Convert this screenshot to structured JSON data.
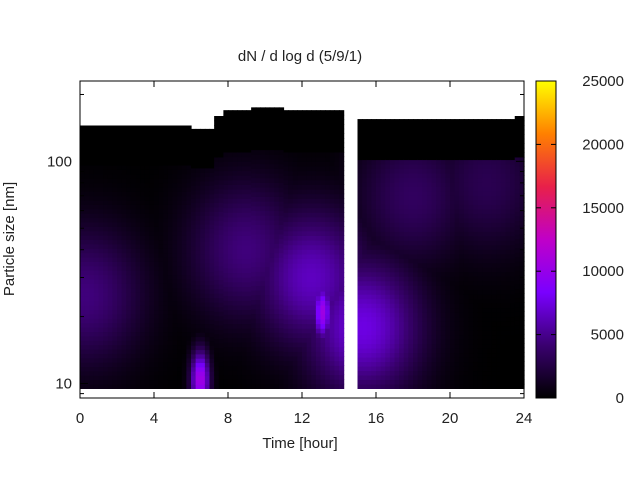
{
  "chart_data": {
    "type": "heatmap",
    "title": "dN / d log d (5/9/1)",
    "xlabel": "Time [hour]",
    "ylabel": "Particle size [nm]",
    "xlim": [
      0,
      24
    ],
    "x_ticks": [
      0,
      4,
      8,
      12,
      16,
      20,
      24
    ],
    "y_scale": "log",
    "ylim": [
      8.6,
      230
    ],
    "y_ticks": [
      10,
      100
    ],
    "colorbar": {
      "range": [
        0,
        25000
      ],
      "ticks": [
        0,
        5000,
        10000,
        15000,
        20000,
        25000
      ],
      "colormap": [
        "#000000",
        "#3a0070",
        "#7a00ff",
        "#c000c8",
        "#e8204a",
        "#ff8000",
        "#ffff00"
      ]
    },
    "data_gap_hours": [
      14.3,
      14.9
    ],
    "size_range_nm": [
      9.5,
      140
    ],
    "upper_size_limit_nm": {
      "time_hour": [
        0,
        1.5,
        2.2,
        3,
        4,
        5,
        6,
        6.5,
        7.2,
        7.8,
        9.3,
        10,
        11,
        13,
        14.3,
        15,
        16,
        17,
        18,
        19,
        20,
        21,
        22,
        23,
        23.5,
        24
      ],
      "size_nm": [
        145,
        145,
        145,
        145,
        145,
        145,
        140,
        140,
        160,
        170,
        175,
        175,
        170,
        170,
        165,
        155,
        155,
        155,
        155,
        155,
        155,
        155,
        155,
        155,
        160,
        160
      ]
    },
    "concentration_features": [
      {
        "time_hour": 0.3,
        "size_nm": 25,
        "value": 4500
      },
      {
        "time_hour": 6.5,
        "size_nm": 10.5,
        "value": 11000
      },
      {
        "time_hour": 9,
        "size_nm": 40,
        "value": 4500
      },
      {
        "time_hour": 12.5,
        "size_nm": 30,
        "value": 6500
      },
      {
        "time_hour": 13.1,
        "size_nm": 21,
        "value": 10500
      },
      {
        "time_hour": 15.3,
        "size_nm": 18,
        "value": 7500
      },
      {
        "time_hour": 18,
        "size_nm": 70,
        "value": 3500
      },
      {
        "time_hour": 22,
        "size_nm": 80,
        "value": 3000
      }
    ]
  }
}
